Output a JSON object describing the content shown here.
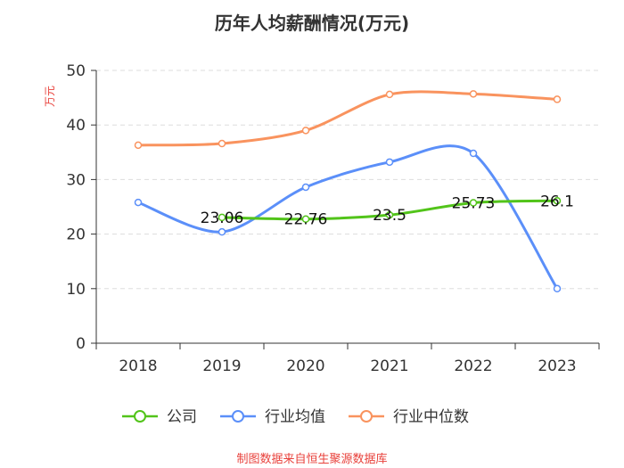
{
  "chart_data": {
    "type": "line",
    "title": "历年人均薪酬情况(万元)",
    "ylabel": "万元",
    "xlabel": "",
    "categories": [
      "2018",
      "2019",
      "2020",
      "2021",
      "2022",
      "2023"
    ],
    "ylim": [
      0,
      50
    ],
    "yticks": [
      0,
      10,
      20,
      30,
      40,
      50
    ],
    "grid": true,
    "legend_position": "bottom",
    "series": [
      {
        "name": "公司",
        "color": "#52c41a",
        "values": [
          null,
          23.06,
          22.76,
          23.5,
          25.73,
          26.1
        ],
        "labels": [
          null,
          "23.06",
          "22.76",
          "23.5",
          "25.73",
          "26.1"
        ]
      },
      {
        "name": "行业均值",
        "color": "#5b8ff9",
        "values": [
          25.8,
          20.4,
          28.6,
          33.2,
          34.8,
          10.0
        ]
      },
      {
        "name": "行业中位数",
        "color": "#f9935e",
        "values": [
          36.3,
          36.6,
          39.0,
          45.6,
          45.7,
          44.7
        ]
      }
    ]
  },
  "source": "制图数据来自恒生聚源数据库"
}
